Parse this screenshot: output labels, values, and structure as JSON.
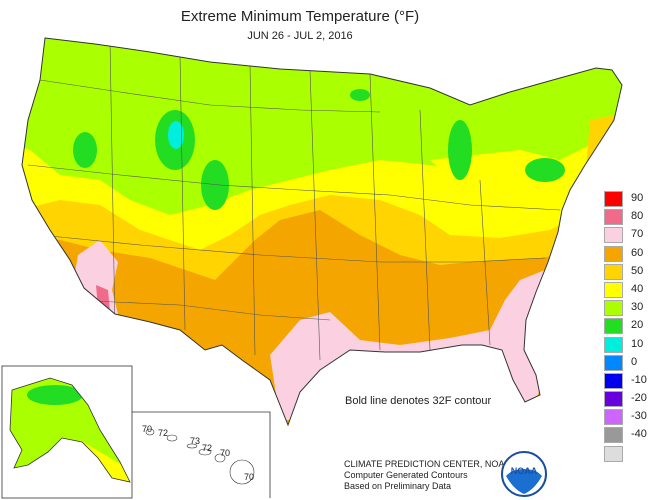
{
  "title": "Extreme Minimum Temperature (°F)",
  "subtitle": "JUN 26 - JUL 2, 2016",
  "legend": [
    {
      "label": "90",
      "color": "#ff0000"
    },
    {
      "label": "80",
      "color": "#f06a8a"
    },
    {
      "label": "70",
      "color": "#fbd0e0"
    },
    {
      "label": "60",
      "color": "#f5a500"
    },
    {
      "label": "50",
      "color": "#ffd400"
    },
    {
      "label": "40",
      "color": "#ffff00"
    },
    {
      "label": "30",
      "color": "#aaff00"
    },
    {
      "label": "20",
      "color": "#22dd22"
    },
    {
      "label": "10",
      "color": "#00eedd"
    },
    {
      "label": "0",
      "color": "#0088ff"
    },
    {
      "label": "-10",
      "color": "#0000ee"
    },
    {
      "label": "-20",
      "color": "#6600dd"
    },
    {
      "label": "-30",
      "color": "#cc66ff"
    },
    {
      "label": "-40",
      "color": "#999999"
    },
    {
      "label": "",
      "color": "#dddddd"
    }
  ],
  "note": "Bold line denotes 32F contour",
  "credit": {
    "line1": "CLIMATE PREDICTION CENTER, NOAA",
    "line2": "Computer Generated Contours",
    "line3": "Based on Preliminary Data"
  },
  "logo_text": "NOAA",
  "hawaii_labels": [
    "70",
    "72",
    "73",
    "72",
    "70",
    "70"
  ],
  "colors": {
    "pink": "#fbd0e0",
    "orange": "#f5a500",
    "gold": "#ffd400",
    "yellow": "#ffff00",
    "lime": "#aaff00",
    "green": "#22dd22",
    "cyan": "#00eedd",
    "red_pink": "#f06a8a"
  }
}
